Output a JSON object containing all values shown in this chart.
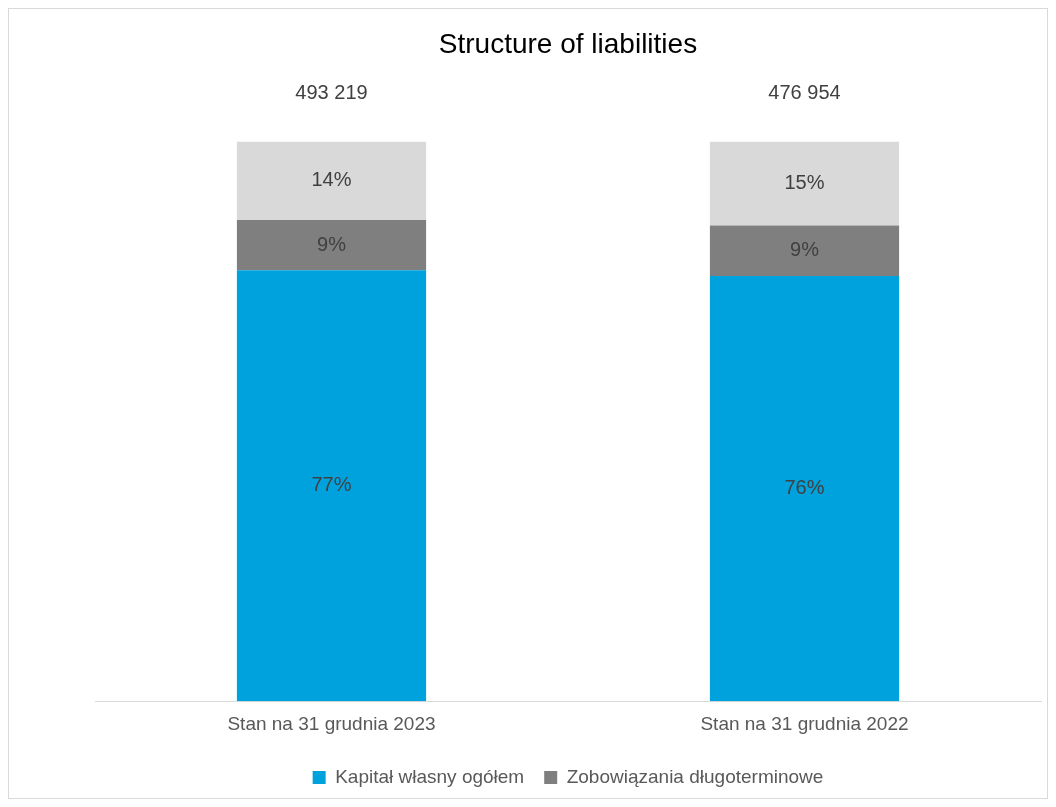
{
  "chart_data": {
    "type": "bar",
    "stacked": true,
    "title": "Structure of liabilities",
    "categories": [
      "Stan na 31 grudnia 2023",
      "Stan na 31 grudnia 2022"
    ],
    "series": [
      {
        "name": "Kapitał własny ogółem",
        "color": "#00a2de",
        "values": [
          77,
          76
        ],
        "value_labels": [
          "77%",
          "76%"
        ]
      },
      {
        "name": "Zobowiązania długoterminowe",
        "color": "#7f7f7f",
        "values": [
          9,
          9
        ],
        "value_labels": [
          "9%",
          "9%"
        ]
      },
      {
        "color": "#d9d9d9",
        "values": [
          14,
          15
        ],
        "value_labels": [
          "14%",
          "15%"
        ]
      }
    ],
    "annotations": [
      {
        "text": "493 219",
        "x": "Stan na 31 grudnia 2023",
        "y": 100
      },
      {
        "text": "476 954",
        "x": "Stan na 31 grudnia 2022",
        "y": 100
      }
    ],
    "ylim": [
      0,
      100
    ],
    "tick_labels": "x",
    "legend": "bottom"
  }
}
